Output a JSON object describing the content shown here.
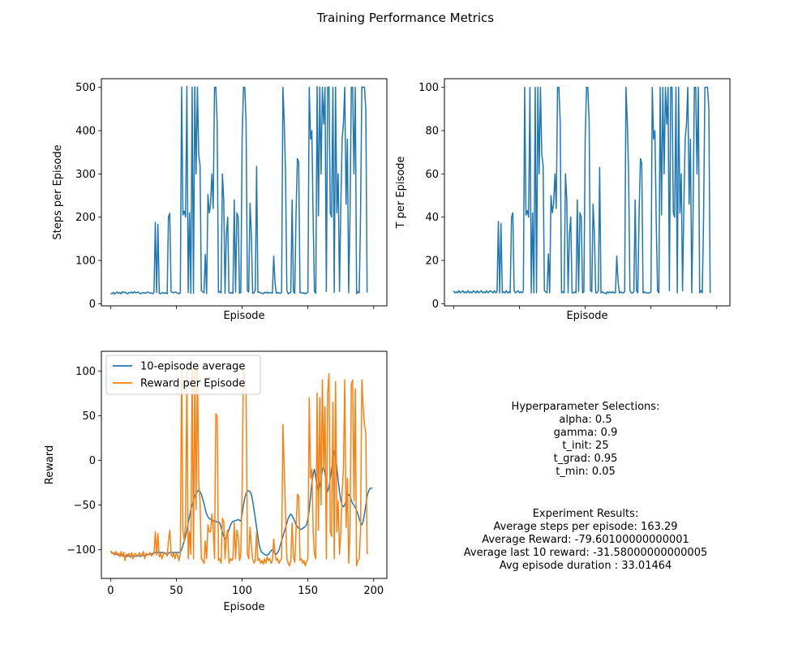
{
  "figure_title": "Training Performance Metrics",
  "colors": {
    "series1": "#1f77b4",
    "series2": "#ff7f0e"
  },
  "chart_data": [
    {
      "type": "line",
      "xlabel": "Episode",
      "ylabel": "Steps per Episode",
      "xlim": [
        -7,
        210
      ],
      "ylim": [
        -5,
        520
      ],
      "xticks": [
        0,
        50,
        100,
        150,
        200
      ],
      "xtick_labels_visible": false,
      "yticks": [
        0,
        100,
        200,
        300,
        400,
        500
      ],
      "grid": false,
      "series": [
        {
          "color": "#1f77b4",
          "values": [
            24,
            23,
            26,
            22,
            25,
            27,
            24,
            26,
            23,
            28,
            25,
            27,
            24,
            23,
            26,
            25,
            27,
            24,
            28,
            25,
            26,
            27,
            24,
            23,
            25,
            26,
            24,
            25,
            27,
            26,
            24,
            25,
            23,
            26,
            188,
            26,
            183,
            24,
            23,
            25,
            26,
            24,
            25,
            23,
            201,
            209,
            28,
            26,
            25,
            27,
            26,
            24,
            23,
            25,
            501,
            205,
            214,
            200,
            502,
            26,
            210,
            24,
            500,
            24,
            501,
            300,
            501,
            344,
            320,
            30,
            28,
            25,
            114,
            23,
            252,
            210,
            230,
            300,
            220,
            500,
            500,
            420,
            26,
            28,
            25,
            300,
            240,
            24,
            160,
            200,
            26,
            24,
            26,
            24,
            240,
            27,
            210,
            200,
            24,
            26,
            380,
            500,
            500,
            420,
            30,
            27,
            232,
            160,
            24,
            25,
            32,
            317,
            26,
            27,
            25,
            24,
            23,
            26,
            25,
            27,
            24,
            26,
            25,
            24,
            110,
            48,
            24,
            26,
            25,
            24,
            26,
            500,
            420,
            300,
            30,
            23,
            25,
            26,
            240,
            28,
            24,
            210,
            335,
            328,
            25,
            26,
            24,
            25,
            23,
            25,
            26,
            500,
            380,
            400,
            190,
            28,
            24,
            502,
            203,
            500,
            300,
            500,
            415,
            500,
            28,
            500,
            501,
            210,
            200,
            500,
            26,
            500,
            210,
            300,
            28,
            224,
            380,
            415,
            500,
            230,
            380,
            25,
            204,
            500,
            500,
            300,
            500,
            23,
            28,
            25,
            203,
            501,
            500,
            500,
            450,
            26
          ]
        }
      ]
    },
    {
      "type": "line",
      "xlabel": "Episode",
      "ylabel": "T per Episode",
      "xlim": [
        -7,
        210
      ],
      "ylim": [
        -1,
        104
      ],
      "xticks": [
        0,
        50,
        100,
        150,
        200
      ],
      "xtick_labels_visible": false,
      "yticks": [
        0,
        20,
        40,
        60,
        80,
        100
      ],
      "grid": false,
      "series": [
        {
          "color": "#1f77b4",
          "values": [
            6,
            5,
            5.5,
            5,
            6,
            5,
            5.5,
            6,
            5,
            5.5,
            5,
            6,
            5,
            5.5,
            5,
            6,
            5.5,
            5,
            6,
            5,
            5.5,
            6,
            5,
            5.5,
            5,
            6,
            5,
            5.5,
            6,
            5.5,
            5,
            6,
            5,
            5.5,
            38,
            5,
            37,
            5,
            5.5,
            5,
            6,
            5,
            5.5,
            5,
            40,
            42,
            6,
            5,
            5.5,
            6,
            5,
            5.5,
            5,
            6,
            100,
            41,
            43,
            40,
            100,
            5,
            42,
            5,
            100,
            5,
            100,
            60,
            100,
            69,
            64,
            6,
            5.5,
            5,
            23,
            5,
            50,
            42,
            46,
            60,
            44,
            100,
            100,
            84,
            5,
            5.5,
            5,
            60,
            48,
            5,
            32,
            40,
            5,
            5,
            5.5,
            5,
            48,
            5.5,
            42,
            40,
            5,
            5.5,
            76,
            100,
            100,
            84,
            6,
            5.5,
            46,
            32,
            5,
            5,
            6,
            63,
            5,
            5.5,
            5,
            5,
            4.5,
            5.5,
            5,
            5.5,
            5,
            5.5,
            5,
            5,
            22,
            10,
            5,
            5.5,
            5,
            5,
            5.5,
            100,
            84,
            60,
            6,
            5,
            5,
            5.5,
            48,
            6,
            5,
            42,
            67,
            65,
            5,
            5.5,
            5,
            5,
            5,
            5,
            5.5,
            100,
            76,
            80,
            38,
            6,
            5,
            100,
            41,
            100,
            60,
            100,
            83,
            100,
            6,
            100,
            100,
            42,
            40,
            100,
            5,
            100,
            42,
            60,
            6,
            45,
            76,
            83,
            100,
            46,
            76,
            5,
            41,
            100,
            100,
            60,
            100,
            5,
            6,
            5,
            40,
            100,
            100,
            100,
            90,
            5
          ]
        }
      ]
    },
    {
      "type": "line",
      "xlabel": "Episode",
      "ylabel": "Reward",
      "xlim": [
        -7,
        210
      ],
      "ylim": [
        -132,
        122
      ],
      "xticks": [
        0,
        50,
        100,
        150,
        200
      ],
      "xtick_labels_visible": true,
      "yticks": [
        -100,
        -50,
        0,
        50,
        100
      ],
      "grid": false,
      "legend": {
        "position": "upper-left",
        "entries": [
          "10-episode average",
          "Reward per Episode"
        ]
      },
      "series": [
        {
          "name": "10-episode average",
          "color": "#1f77b4",
          "values": [
            -102,
            -103,
            -104,
            -104,
            -105,
            -105,
            -106,
            -106,
            -106,
            -107,
            -107,
            -107,
            -107,
            -107,
            -107,
            -107,
            -107,
            -107,
            -107,
            -107,
            -107,
            -107,
            -107,
            -106,
            -106,
            -106,
            -106,
            -106,
            -106,
            -105,
            -105,
            -105,
            -104,
            -104,
            -103,
            -103,
            -103,
            -103,
            -103,
            -103,
            -103,
            -104,
            -104,
            -104,
            -104,
            -103,
            -103,
            -103,
            -103,
            -103,
            -103,
            -103,
            -103,
            -102,
            -100,
            -95,
            -90,
            -85,
            -78,
            -70,
            -63,
            -55,
            -50,
            -45,
            -40,
            -37,
            -35,
            -33,
            -35,
            -38,
            -43,
            -48,
            -55,
            -60,
            -63,
            -65,
            -66,
            -67,
            -67,
            -68,
            -68,
            -69,
            -69,
            -70,
            -75,
            -80,
            -85,
            -88,
            -86,
            -82,
            -77,
            -73,
            -70,
            -68,
            -68,
            -67,
            -67,
            -66,
            -67,
            -68,
            -60,
            -50,
            -42,
            -37,
            -34,
            -34,
            -35,
            -38,
            -45,
            -55,
            -65,
            -75,
            -85,
            -95,
            -100,
            -103,
            -104,
            -105,
            -106,
            -106,
            -105,
            -103,
            -101,
            -100,
            -102,
            -104,
            -105,
            -103,
            -100,
            -95,
            -90,
            -85,
            -80,
            -75,
            -70,
            -65,
            -62,
            -60,
            -62,
            -65,
            -68,
            -72,
            -74,
            -76,
            -77,
            -77,
            -76,
            -75,
            -74,
            -72,
            -65,
            -55,
            -40,
            -25,
            -15,
            -10,
            -20,
            -30,
            -35,
            -28,
            -20,
            -10,
            -8,
            -15,
            -25,
            -35,
            -30,
            -20,
            -10,
            0,
            10,
            5,
            -8,
            -22,
            -35,
            -45,
            -50,
            -52,
            -50,
            -45,
            -40,
            -38,
            -40,
            -45,
            -48,
            -50,
            -53,
            -56,
            -60,
            -65,
            -70,
            -72,
            -68,
            -60,
            -50,
            -40,
            -35,
            -32,
            -31,
            -31
          ]
        },
        {
          "name": "Reward per Episode",
          "color": "#ff7f0e",
          "values": [
            -101,
            -104,
            -103,
            -106,
            -102,
            -105,
            -104,
            -108,
            -102,
            -107,
            -103,
            -112,
            -105,
            -106,
            -104,
            -109,
            -103,
            -110,
            -105,
            -104,
            -107,
            -106,
            -103,
            -108,
            -105,
            -102,
            -110,
            -104,
            -106,
            -105,
            -103,
            -107,
            -105,
            -104,
            -80,
            -106,
            -82,
            -108,
            -104,
            -110,
            -105,
            -103,
            -104,
            -107,
            -90,
            -78,
            -105,
            -108,
            -103,
            -110,
            -104,
            -106,
            -112,
            -104,
            100,
            -78,
            -90,
            -72,
            100,
            -110,
            -80,
            -105,
            105,
            -110,
            100,
            -55,
            105,
            -25,
            -45,
            -110,
            -112,
            -115,
            -90,
            -110,
            -72,
            -80,
            -80,
            -60,
            -75,
            -110,
            52,
            50,
            -112,
            -110,
            -115,
            -65,
            -68,
            -110,
            -85,
            -78,
            -115,
            -110,
            -112,
            -110,
            -70,
            -110,
            -78,
            -85,
            -112,
            -105,
            -30,
            105,
            90,
            80,
            -105,
            -110,
            -75,
            -95,
            -110,
            -115,
            -112,
            -80,
            -112,
            -110,
            -115,
            -112,
            -116,
            -110,
            -115,
            -108,
            -112,
            -110,
            -115,
            -112,
            -88,
            -105,
            -112,
            -110,
            -115,
            -112,
            -110,
            40,
            -10,
            -60,
            -110,
            -115,
            -118,
            -112,
            -70,
            -108,
            -114,
            -78,
            -38,
            -40,
            -112,
            -110,
            -115,
            -112,
            -118,
            -113,
            -110,
            70,
            -20,
            -10,
            -80,
            -105,
            -110,
            75,
            -78,
            70,
            -50,
            90,
            -10,
            60,
            -110,
            75,
            97,
            -80,
            -85,
            65,
            -110,
            88,
            -80,
            -45,
            -105,
            -80,
            -35,
            -10,
            90,
            -75,
            -20,
            -115,
            -80,
            85,
            90,
            -45,
            80,
            -118,
            -112,
            -110,
            -78,
            90,
            60,
            40,
            30,
            -105
          ]
        }
      ]
    }
  ],
  "hyperparameters": {
    "heading": "Hyperparameter Selections:",
    "lines": [
      "alpha: 0.5",
      "gamma: 0.9",
      "t_init: 25",
      "t_grad: 0.95",
      "t_min: 0.05"
    ]
  },
  "results": {
    "heading": "Experiment Results:",
    "lines": [
      "Average steps per episode: 163.29",
      "Average Reward: -79.60100000000001",
      "Average last 10 reward: -31.58000000000005",
      "Avg episode duration : 33.01464"
    ]
  }
}
